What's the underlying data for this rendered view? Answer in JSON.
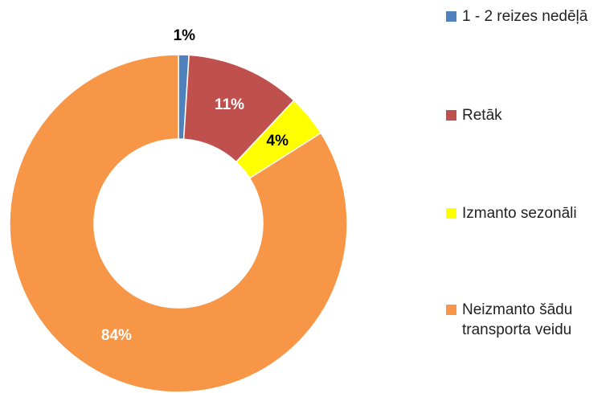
{
  "chart_data": {
    "type": "donut",
    "categories": [
      "1 - 2 reizes nedēļā",
      "Retāk",
      "Izmanto sezonāli",
      "Neizmanto šādu transporta veidu"
    ],
    "values": [
      1,
      11,
      4,
      84
    ],
    "value_labels": [
      "1%",
      "11%",
      "4%",
      "84%"
    ],
    "colors": [
      "#4f81bd",
      "#c0504d",
      "#ffff00",
      "#f79646"
    ],
    "label_colors": [
      "#000000",
      "#ffffff",
      "#000000",
      "#ffffff"
    ],
    "legend": "right"
  }
}
